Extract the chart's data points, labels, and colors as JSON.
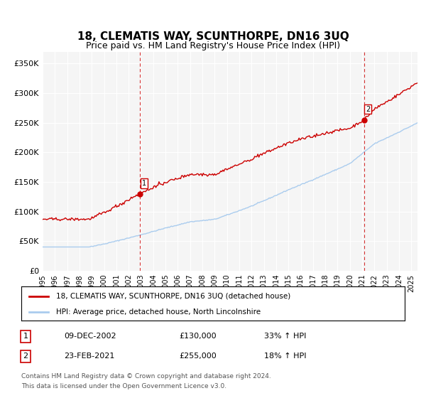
{
  "title": "18, CLEMATIS WAY, SCUNTHORPE, DN16 3UQ",
  "subtitle": "Price paid vs. HM Land Registry's House Price Index (HPI)",
  "ylabel_ticks": [
    "£0",
    "£50K",
    "£100K",
    "£150K",
    "£200K",
    "£250K",
    "£300K",
    "£350K"
  ],
  "ytick_values": [
    0,
    50000,
    100000,
    150000,
    200000,
    250000,
    300000,
    350000
  ],
  "ylim": [
    0,
    370000
  ],
  "xlim_start": 1995.0,
  "xlim_end": 2025.5,
  "sale1": {
    "date_num": 2002.94,
    "price": 130000,
    "label": "1",
    "date_str": "09-DEC-2002",
    "price_str": "£130,000",
    "hpi_str": "33% ↑ HPI"
  },
  "sale2": {
    "date_num": 2021.15,
    "price": 255000,
    "label": "2",
    "date_str": "23-FEB-2021",
    "price_str": "£255,000",
    "hpi_str": "18% ↑ HPI"
  },
  "line1_color": "#cc0000",
  "line2_color": "#aaccee",
  "vline_color": "#cc0000",
  "legend1_label": "18, CLEMATIS WAY, SCUNTHORPE, DN16 3UQ (detached house)",
  "legend2_label": "HPI: Average price, detached house, North Lincolnshire",
  "footer1": "Contains HM Land Registry data © Crown copyright and database right 2024.",
  "footer2": "This data is licensed under the Open Government Licence v3.0.",
  "bg_color": "#ffffff",
  "plot_bg_color": "#f5f5f5"
}
